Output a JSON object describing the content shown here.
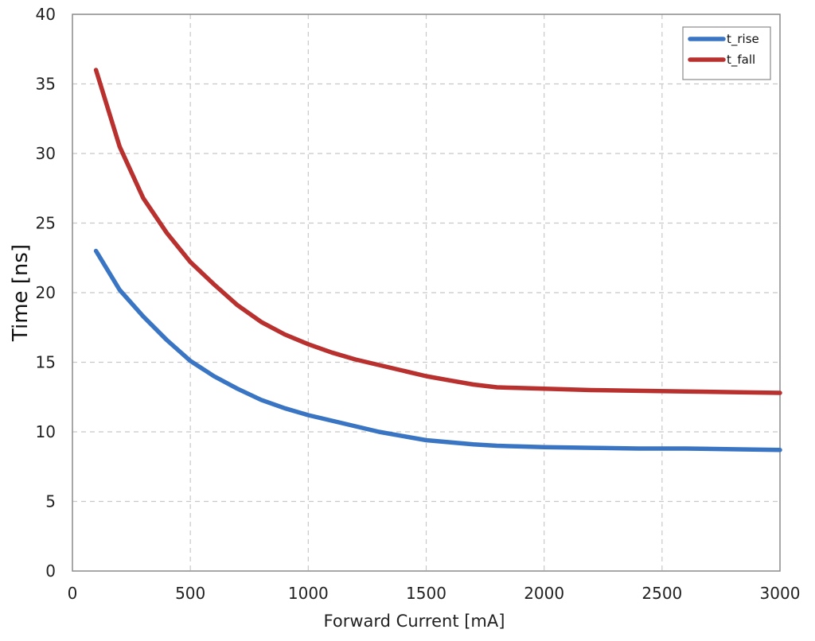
{
  "chart_data": {
    "type": "line",
    "xlabel": "Forward Current [mA]",
    "ylabel": "Time [ns]",
    "xlim": [
      0,
      3000
    ],
    "ylim": [
      0,
      40
    ],
    "xticks": [
      0,
      500,
      1000,
      1500,
      2000,
      2500,
      3000
    ],
    "yticks": [
      0,
      5,
      10,
      15,
      20,
      25,
      30,
      35,
      40
    ],
    "grid": true,
    "legend_position": "top-right",
    "series": [
      {
        "name": "t_rise",
        "color": "#3a75c4",
        "x": [
          100,
          200,
          300,
          400,
          500,
          600,
          700,
          800,
          900,
          1000,
          1100,
          1200,
          1300,
          1400,
          1500,
          1600,
          1700,
          1800,
          1900,
          2000,
          2200,
          2400,
          2600,
          2800,
          3000
        ],
        "y": [
          23.0,
          20.2,
          18.3,
          16.6,
          15.1,
          14.0,
          13.1,
          12.3,
          11.7,
          11.2,
          10.8,
          10.4,
          10.0,
          9.7,
          9.4,
          9.25,
          9.1,
          9.0,
          8.95,
          8.9,
          8.85,
          8.8,
          8.8,
          8.75,
          8.7
        ]
      },
      {
        "name": "t_fall",
        "color": "#b8312f",
        "x": [
          100,
          200,
          300,
          400,
          500,
          600,
          700,
          800,
          900,
          1000,
          1100,
          1200,
          1300,
          1400,
          1500,
          1600,
          1700,
          1800,
          1900,
          2000,
          2200,
          2400,
          2600,
          2800,
          3000
        ],
        "y": [
          36.0,
          30.5,
          26.8,
          24.3,
          22.2,
          20.6,
          19.1,
          17.9,
          17.0,
          16.3,
          15.7,
          15.2,
          14.8,
          14.4,
          14.0,
          13.7,
          13.4,
          13.2,
          13.15,
          13.1,
          13.0,
          12.95,
          12.9,
          12.85,
          12.8
        ]
      }
    ]
  }
}
